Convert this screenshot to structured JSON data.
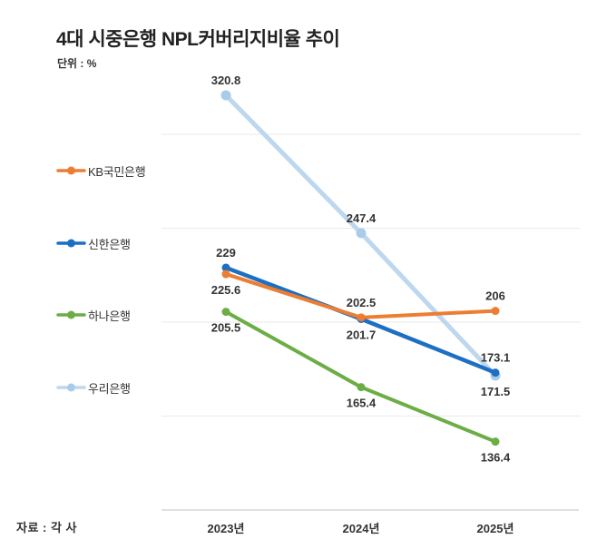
{
  "header": {
    "title": "4대 시중은행 NPL커버리지비율 추이",
    "unit_label": "단위 : %"
  },
  "source": {
    "label": "자료 : 각 사"
  },
  "chart_data": {
    "type": "line",
    "title": "4대 시중은행 NPL커버리지비율 추이",
    "unit": "%",
    "categories": [
      "2023년",
      "2024년",
      "2025년"
    ],
    "ylim": [
      100,
      340
    ],
    "yticks": [
      150,
      200,
      250,
      300
    ],
    "grid": "horizontal",
    "legend_position": "left",
    "colors": {
      "kb": "#ED7D31",
      "shinhan": "#1D6FC4",
      "hana": "#6CAE45",
      "woori": "#BDD7EE"
    },
    "series": [
      {
        "name": "KB국민은행",
        "color": "#ED7D31",
        "marker_color": "#ED7D31",
        "line_width": 4,
        "marker_radius": 4.5,
        "values": [
          225.6,
          202.5,
          206
        ],
        "labels": [
          "225.6",
          "202.5",
          "206"
        ],
        "label_pos": [
          "below",
          "above",
          "above"
        ],
        "z": 4
      },
      {
        "name": "신한은행",
        "color": "#1D6FC4",
        "marker_color": "#1D6FC4",
        "line_width": 4.5,
        "marker_radius": 4.5,
        "values": [
          229,
          201.7,
          173.1
        ],
        "labels": [
          "229",
          "201.7",
          "173.1"
        ],
        "label_pos": [
          "above",
          "below",
          "above"
        ],
        "z": 3
      },
      {
        "name": "하나은행",
        "color": "#6CAE45",
        "marker_color": "#6CAE45",
        "line_width": 4,
        "marker_radius": 4.5,
        "values": [
          205.5,
          165.4,
          136.4
        ],
        "labels": [
          "205.5",
          "165.4",
          "136.4"
        ],
        "label_pos": [
          "below",
          "below",
          "below"
        ],
        "z": 2
      },
      {
        "name": "우리은행",
        "color": "#BDD7EE",
        "marker_color": "#A9CCEB",
        "line_width": 5,
        "marker_radius": 5.5,
        "values": [
          320.8,
          247.4,
          171.5
        ],
        "labels": [
          "320.8",
          "247.4",
          "171.5"
        ],
        "label_pos": [
          "above",
          "above",
          "below"
        ],
        "z": 1
      }
    ]
  }
}
